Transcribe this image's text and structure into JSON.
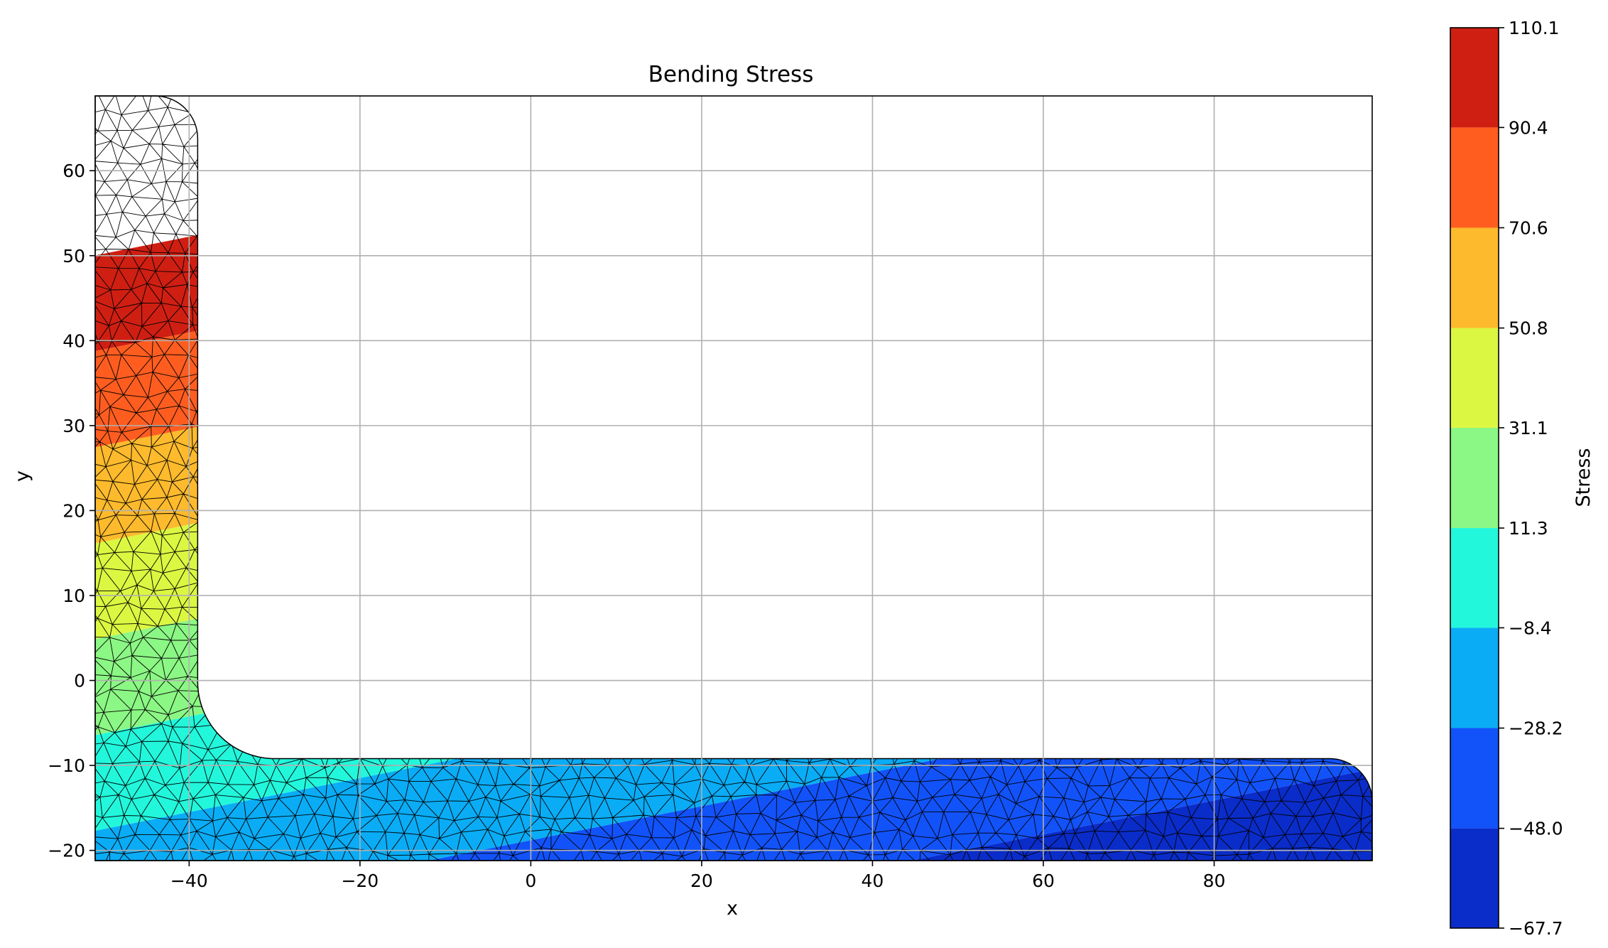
{
  "chart_data": {
    "type": "heatmap",
    "title": "Bending Stress",
    "xlabel": "x",
    "ylabel": "y",
    "xlim": [
      -51,
      98.5
    ],
    "ylim": [
      -21.2,
      68.8
    ],
    "grid": true,
    "xticks": [
      -40,
      -20,
      0,
      20,
      40,
      60,
      80
    ],
    "xtick_labels": [
      "−40",
      "−20",
      "0",
      "20",
      "40",
      "60",
      "80"
    ],
    "yticks": [
      -20,
      -10,
      0,
      10,
      20,
      30,
      40,
      50,
      60
    ],
    "ytick_labels": [
      "−20",
      "−10",
      "0",
      "10",
      "20",
      "30",
      "40",
      "50",
      "60"
    ],
    "geometry": {
      "shape": "L-section (angle) with triangular mesh",
      "outer_corner": [
        -51,
        -21.2
      ],
      "vertical_leg_width": 12,
      "vertical_leg_top": 68.8,
      "horizontal_leg_right": 98.5,
      "horizontal_leg_thickness": 12,
      "root_fillet_radius": 9,
      "toe_radius_vertical_leg": 5,
      "toe_radius_horizontal_leg": 5
    },
    "stress_field": {
      "model": "linear",
      "reference_point": [
        -28,
        -8
      ],
      "value_at_reference": 0.5,
      "gradient_per_unit_x": -0.35,
      "gradient_per_unit_y": 1.75
    },
    "colorbar": {
      "label": "Stress",
      "levels": [
        -67.7,
        -48.0,
        -28.2,
        -8.4,
        11.3,
        31.1,
        50.8,
        70.6,
        90.4,
        110.1
      ],
      "tick_labels": [
        "−67.7",
        "−48.0",
        "−28.2",
        "−8.4",
        "11.3",
        "31.1",
        "50.8",
        "70.6",
        "90.4",
        "110.1"
      ],
      "colors": [
        "#0a2cc9",
        "#1252f9",
        "#0aacf5",
        "#22f7dc",
        "#8bf784",
        "#dcf741",
        "#fdba2c",
        "#ff5d20",
        "#cf1f12"
      ]
    },
    "mesh_color": "#000000",
    "grid_color": "#b0b0b0"
  }
}
